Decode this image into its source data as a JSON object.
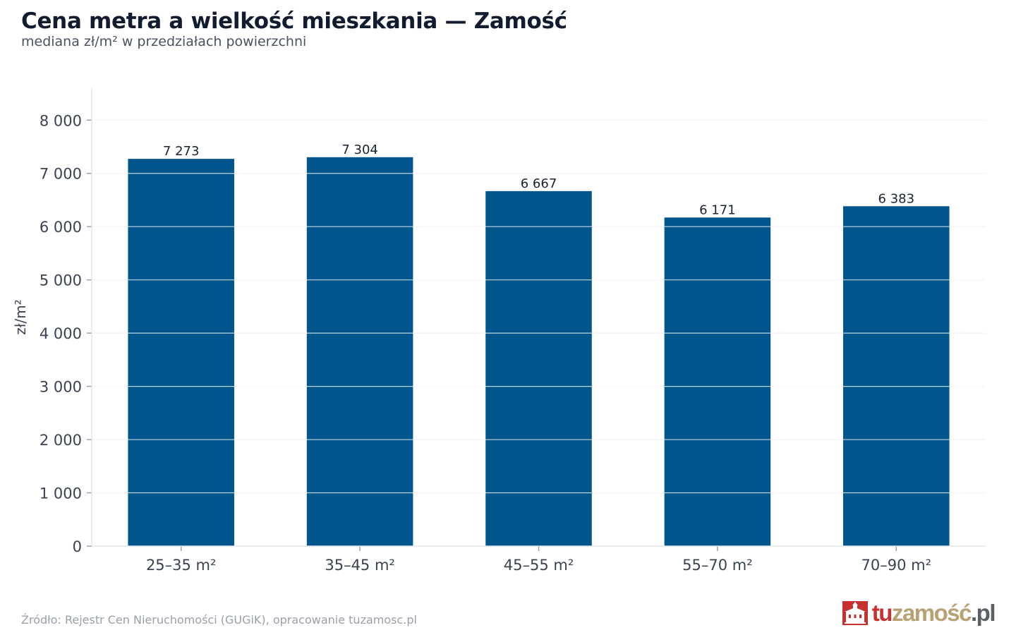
{
  "header": {
    "title": "Cena metra a wielkość mieszkania — Zamość",
    "subtitle": "mediana zł/m² w przedziałach powierzchni"
  },
  "footer": {
    "source": "Źródło: Rejestr Cen Nieruchomości (GUGiK), opracowanie tuzamosc.pl"
  },
  "logo": {
    "part_tu": "tu",
    "part_zamosc": "zamość",
    "part_pl": ".pl",
    "colors": {
      "tu": "#c6302e",
      "zamosc": "#b8a274",
      "pl": "#5b5f66"
    }
  },
  "chart_data": {
    "type": "bar",
    "title": "Cena metra a wielkość mieszkania — Zamość",
    "subtitle": "mediana zł/m² w przedziałach powierzchni",
    "xlabel": "",
    "ylabel": "zł/m²",
    "categories": [
      "25–35 m²",
      "35–45 m²",
      "45–55 m²",
      "55–70 m²",
      "70–90 m²"
    ],
    "values": [
      7273,
      7304,
      6667,
      6171,
      6383
    ],
    "value_labels": [
      "7 273",
      "7 304",
      "6 667",
      "6 171",
      "6 383"
    ],
    "ylim": [
      0,
      8600
    ],
    "yticks": [
      0,
      1000,
      2000,
      3000,
      4000,
      5000,
      6000,
      7000,
      8000
    ],
    "ytick_labels": [
      "0",
      "1 000",
      "2 000",
      "3 000",
      "4 000",
      "5 000",
      "6 000",
      "7 000",
      "8 000"
    ],
    "grid": true,
    "bar_color": "#00558c",
    "grid_color": "#e6e8eb"
  }
}
